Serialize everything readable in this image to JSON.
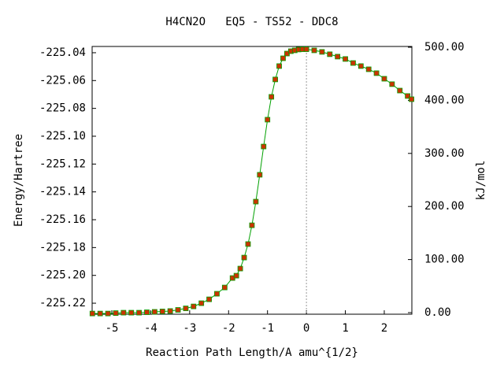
{
  "chart_data": {
    "type": "line",
    "title": "H4CN2O   EQ5 - TS52 - DDC8",
    "x_label": "Reaction Path Length/A amu^{1/2}",
    "y_label": "Energy/Hartree",
    "y2_label": "kJ/mol",
    "x": [
      -5.5,
      -5.3,
      -5.1,
      -4.9,
      -4.7,
      -4.5,
      -4.3,
      -4.1,
      -3.9,
      -3.7,
      -3.5,
      -3.3,
      -3.1,
      -2.9,
      -2.7,
      -2.5,
      -2.3,
      -2.1,
      -1.9,
      -1.8,
      -1.7,
      -1.6,
      -1.5,
      -1.4,
      -1.3,
      -1.2,
      -1.1,
      -1.0,
      -0.9,
      -0.8,
      -0.7,
      -0.6,
      -0.5,
      -0.4,
      -0.3,
      -0.2,
      -0.1,
      0,
      0.2,
      0.4,
      0.6,
      0.8,
      1.0,
      1.2,
      1.4,
      1.6,
      1.8,
      2.0,
      2.2,
      2.4,
      2.6,
      2.7
    ],
    "series": [
      {
        "color": "#00a000",
        "marker_color": "#cc3300",
        "values": [
          -225.2274,
          -225.2274,
          -225.2274,
          -225.2271,
          -225.2268,
          -225.2268,
          -225.2268,
          -225.2265,
          -225.2262,
          -225.2259,
          -225.2256,
          -225.2248,
          -225.2237,
          -225.2223,
          -225.22,
          -225.2172,
          -225.2132,
          -225.2087,
          -225.2019,
          -225.2002,
          -225.1951,
          -225.1872,
          -225.1775,
          -225.164,
          -225.147,
          -225.1277,
          -225.1074,
          -225.0881,
          -225.0717,
          -225.0592,
          -225.0496,
          -225.044,
          -225.0406,
          -225.0389,
          -225.0383,
          -225.0377,
          -225.0375,
          -225.0375,
          -225.0383,
          -225.0394,
          -225.0411,
          -225.0428,
          -225.0445,
          -225.0474,
          -225.0496,
          -225.0519,
          -225.0547,
          -225.0587,
          -225.0626,
          -225.0672,
          -225.0711,
          -225.0734
        ]
      }
    ],
    "xlim": [
      -5.506,
      2.709
    ],
    "xticks": [
      -5,
      -4,
      -3,
      -2,
      -1,
      0,
      1,
      2
    ],
    "ylim": [
      -225.2279,
      -225.0355
    ],
    "yticks": [
      -225.22,
      {
        "value": -225.2,
        "label": "-225.20"
      },
      -225.18,
      -225.16,
      -225.14,
      -225.12,
      {
        "value": -225.1,
        "label": "-225.10"
      },
      -225.08,
      -225.06,
      -225.04
    ],
    "y2lim": [
      -2.97,
      501.5
    ],
    "y2ticks": [
      {
        "value": 0,
        "label": "0.00"
      },
      {
        "value": 100,
        "label": "100.00"
      },
      {
        "value": 200,
        "label": "200.00"
      },
      {
        "value": 300,
        "label": "300.00"
      },
      {
        "value": 400,
        "label": "400.00"
      },
      {
        "value": 500,
        "label": "500.00"
      }
    ],
    "vline_x": 0
  }
}
